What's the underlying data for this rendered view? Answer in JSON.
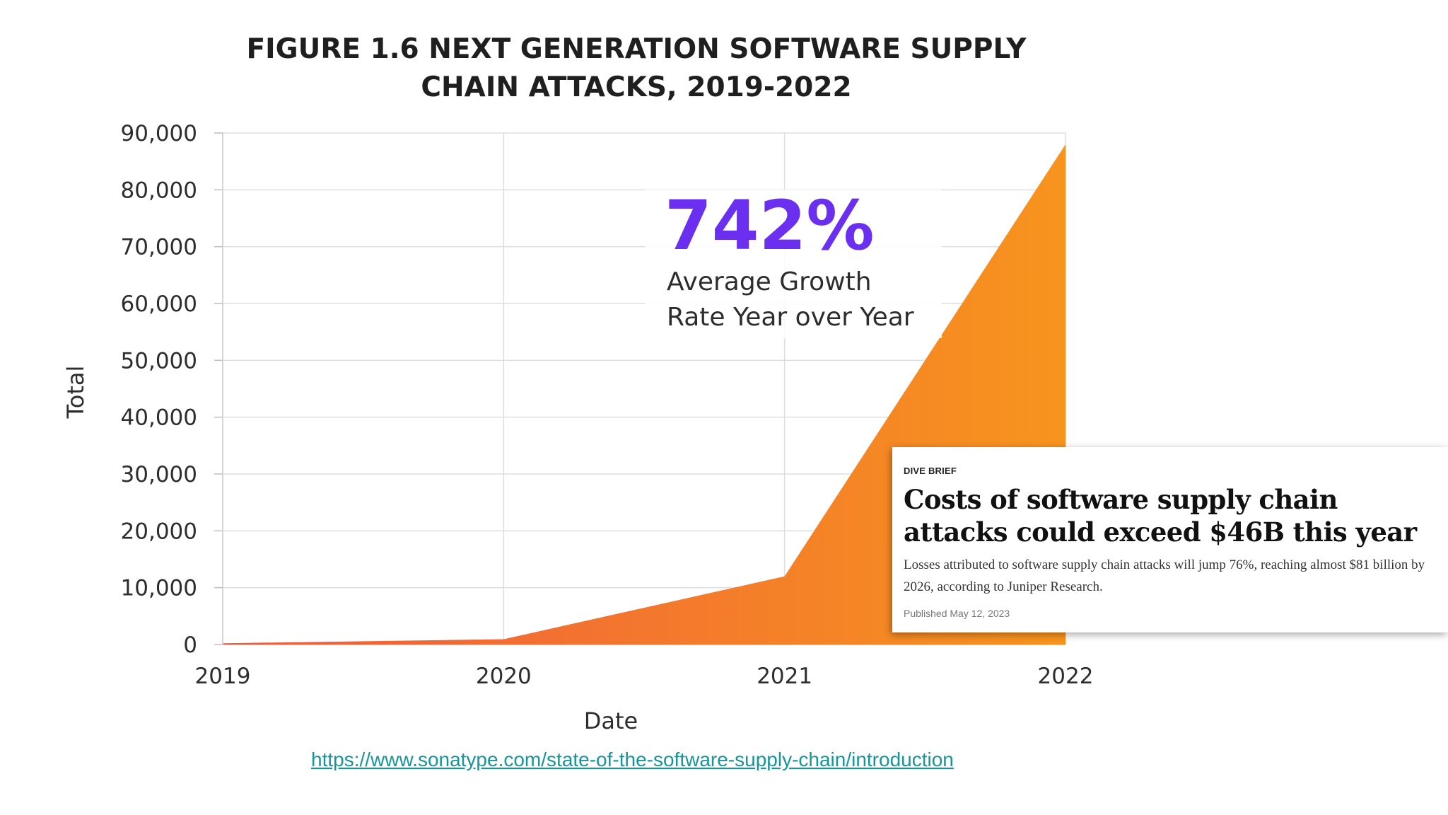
{
  "chart_data": {
    "type": "area",
    "title_lines": [
      "FIGURE 1.6 NEXT GENERATION SOFTWARE SUPPLY",
      "CHAIN ATTACKS, 2019-2022"
    ],
    "x": [
      2019,
      2020,
      2021,
      2022
    ],
    "x_tick_labels": [
      "2019",
      "2020",
      "2021",
      "2022"
    ],
    "values": [
      216,
      929,
      12000,
      88000
    ],
    "xlabel": "Date",
    "ylabel": "Total",
    "ylim": [
      0,
      90000
    ],
    "y_ticks": [
      0,
      10000,
      20000,
      30000,
      40000,
      50000,
      60000,
      70000,
      80000,
      90000
    ],
    "y_tick_labels": [
      "0",
      "10,000",
      "20,000",
      "30,000",
      "40,000",
      "50,000",
      "60,000",
      "70,000",
      "80,000",
      "90,000"
    ],
    "grid": true,
    "fill_gradient": [
      "#ef5a3e",
      "#f7941d"
    ],
    "annotation": {
      "value": "742%",
      "lines": [
        "Average Growth",
        "Rate Year over Year"
      ],
      "value_color": "#6b2ff0"
    }
  },
  "news_card": {
    "kicker": "DIVE BRIEF",
    "headline": "Costs of software supply chain attacks could exceed $46B this year",
    "summary": "Losses attributed to software supply chain attacks will jump 76%, reaching almost $81 billion by 2026, according to Juniper Research.",
    "date": "Published May 12, 2023"
  },
  "source_link": {
    "text": "https://www.sonatype.com/state-of-the-software-supply-chain/introduction"
  }
}
